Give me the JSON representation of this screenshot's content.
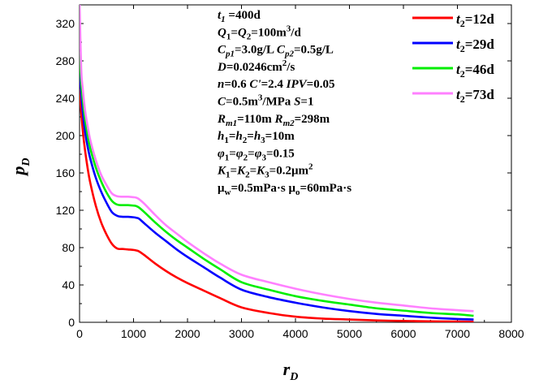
{
  "chart_data": {
    "type": "line",
    "xlabel": "r",
    "xlabel_sub": "D",
    "ylabel": "p",
    "ylabel_sub": "D",
    "xlim": [
      0,
      8000
    ],
    "ylim": [
      0,
      340
    ],
    "xticks": [
      0,
      1000,
      2000,
      3000,
      4000,
      5000,
      6000,
      7000,
      8000
    ],
    "yticks": [
      0,
      40,
      80,
      120,
      160,
      200,
      240,
      280,
      320
    ],
    "grid": false,
    "legend_position": "top-right",
    "series": [
      {
        "name": "t2=12d",
        "label_var": "t",
        "label_sub": "2",
        "label_val": "=12d",
        "color": "#ff0000",
        "x": [
          0,
          30,
          60,
          100,
          150,
          200,
          300,
          400,
          500,
          600,
          700,
          800,
          900,
          1000,
          1050,
          1100,
          1200,
          1400,
          1600,
          1800,
          2000,
          2300,
          2600,
          3000,
          3500,
          4000,
          4500,
          5000,
          5500,
          6000,
          6500,
          7000,
          7300
        ],
        "y": [
          250,
          225,
          205,
          185,
          165,
          149,
          125,
          107,
          94,
          84,
          79,
          78.5,
          78,
          77.5,
          77,
          76,
          72,
          63,
          55,
          48,
          42,
          34,
          26,
          16,
          10,
          6,
          4,
          3,
          2,
          1.5,
          1,
          0.8,
          0.5
        ]
      },
      {
        "name": "t2=29d",
        "label_var": "t",
        "label_sub": "2",
        "label_val": "=29d",
        "color": "#0000ff",
        "x": [
          0,
          30,
          60,
          100,
          150,
          200,
          300,
          400,
          500,
          600,
          700,
          800,
          900,
          1000,
          1050,
          1100,
          1200,
          1400,
          1600,
          1800,
          2000,
          2300,
          2600,
          3000,
          3500,
          4000,
          4500,
          5000,
          5500,
          6000,
          6500,
          7000,
          7300
        ],
        "y": [
          275,
          245,
          225,
          205,
          188,
          175,
          155,
          140,
          128,
          118,
          114,
          113,
          113,
          112.5,
          112,
          111,
          106,
          96,
          87,
          78,
          70,
          59,
          48,
          35,
          27,
          21,
          16,
          12,
          9,
          7,
          5,
          3.5,
          3
        ]
      },
      {
        "name": "t2=46d",
        "label_var": "t",
        "label_sub": "2",
        "label_val": "=46d",
        "color": "#00ee00",
        "x": [
          0,
          30,
          60,
          100,
          150,
          200,
          300,
          400,
          500,
          600,
          700,
          800,
          900,
          1000,
          1050,
          1100,
          1200,
          1400,
          1600,
          1800,
          2000,
          2300,
          2600,
          3000,
          3500,
          4000,
          4500,
          5000,
          5500,
          6000,
          6500,
          7000,
          7300
        ],
        "y": [
          290,
          258,
          238,
          218,
          200,
          186,
          166,
          151,
          139,
          130,
          126,
          125.5,
          125.5,
          125,
          124.5,
          123,
          118,
          107,
          97,
          88,
          80,
          68,
          57,
          43,
          35,
          28,
          23,
          19,
          15,
          12.5,
          10,
          8.5,
          7
        ]
      },
      {
        "name": "t2=73d",
        "label_var": "t",
        "label_sub": "2",
        "label_val": "=73d",
        "color": "#ff80ff",
        "x": [
          0,
          30,
          60,
          100,
          150,
          200,
          300,
          400,
          500,
          600,
          700,
          800,
          900,
          1000,
          1050,
          1100,
          1200,
          1400,
          1600,
          1800,
          2000,
          2300,
          2600,
          3000,
          3500,
          4000,
          4500,
          5000,
          5500,
          6000,
          6500,
          7000,
          7300
        ],
        "y": [
          340,
          272,
          250,
          228,
          210,
          195,
          174,
          158,
          147,
          138,
          135,
          134.5,
          134.5,
          134,
          133.5,
          132,
          127,
          115,
          104,
          95,
          86,
          74,
          63,
          51,
          43,
          36,
          30,
          25,
          21,
          18,
          15,
          13,
          12
        ]
      }
    ],
    "annotations": [
      {
        "id": "a1",
        "parts": [
          {
            "t": "t",
            "i": true
          },
          {
            "t": "1",
            "sub": true,
            "i": true
          },
          {
            "t": " =400d"
          }
        ]
      },
      {
        "id": "a2",
        "parts": [
          {
            "t": "Q",
            "i": true
          },
          {
            "t": "1",
            "sub": true
          },
          {
            "t": "="
          },
          {
            "t": "Q",
            "i": true
          },
          {
            "t": "2",
            "sub": true
          },
          {
            "t": "=100m"
          },
          {
            "t": "3",
            "sup": true
          },
          {
            "t": "/d"
          }
        ]
      },
      {
        "id": "a3",
        "parts": [
          {
            "t": "C",
            "i": true
          },
          {
            "t": "p1",
            "sub": true,
            "i": true
          },
          {
            "t": "=3.0g/L "
          },
          {
            "t": "C",
            "i": true
          },
          {
            "t": "p2",
            "sub": true,
            "i": true
          },
          {
            "t": "=0.5g/L"
          }
        ]
      },
      {
        "id": "a4",
        "parts": [
          {
            "t": "D",
            "i": true
          },
          {
            "t": "=0.0246cm"
          },
          {
            "t": "2",
            "sup": true
          },
          {
            "t": "/s"
          }
        ]
      },
      {
        "id": "a5",
        "parts": [
          {
            "t": "n",
            "i": true
          },
          {
            "t": "=0.6  "
          },
          {
            "t": "C'",
            "i": true
          },
          {
            "t": "=2.4  "
          },
          {
            "t": "IPV",
            "i": true
          },
          {
            "t": "=0.05"
          }
        ]
      },
      {
        "id": "a6",
        "parts": [
          {
            "t": "C",
            "i": true
          },
          {
            "t": "=0.5m"
          },
          {
            "t": "3",
            "sup": true
          },
          {
            "t": "/MPa    "
          },
          {
            "t": "S",
            "i": true
          },
          {
            "t": "=1"
          }
        ]
      },
      {
        "id": "a7",
        "parts": [
          {
            "t": "R",
            "i": true
          },
          {
            "t": "m1",
            "sub": true,
            "i": true
          },
          {
            "t": "=110m  "
          },
          {
            "t": "R",
            "i": true
          },
          {
            "t": "m2",
            "sub": true,
            "i": true
          },
          {
            "t": "=298m"
          }
        ]
      },
      {
        "id": "a8",
        "parts": [
          {
            "t": "h",
            "i": true
          },
          {
            "t": "1",
            "sub": true
          },
          {
            "t": "="
          },
          {
            "t": "h",
            "i": true
          },
          {
            "t": "2",
            "sub": true
          },
          {
            "t": "="
          },
          {
            "t": "h",
            "i": true
          },
          {
            "t": "3",
            "sub": true
          },
          {
            "t": "=10m"
          }
        ]
      },
      {
        "id": "a9",
        "parts": [
          {
            "t": "φ",
            "i": true
          },
          {
            "t": "1",
            "sub": true
          },
          {
            "t": "="
          },
          {
            "t": "φ",
            "i": true
          },
          {
            "t": "2",
            "sub": true
          },
          {
            "t": "="
          },
          {
            "t": "φ",
            "i": true
          },
          {
            "t": "3",
            "sub": true
          },
          {
            "t": "=0.15"
          }
        ]
      },
      {
        "id": "a10",
        "parts": [
          {
            "t": "K",
            "i": true
          },
          {
            "t": "1",
            "sub": true
          },
          {
            "t": "="
          },
          {
            "t": "K",
            "i": true
          },
          {
            "t": "2",
            "sub": true
          },
          {
            "t": "="
          },
          {
            "t": "K",
            "i": true
          },
          {
            "t": "3",
            "sub": true
          },
          {
            "t": "=0.2μm"
          },
          {
            "t": "2",
            "sup": true
          }
        ]
      },
      {
        "id": "a11",
        "parts": [
          {
            "t": "μ"
          },
          {
            "t": "w",
            "sub": true
          },
          {
            "t": "=0.5mPa·s  μ"
          },
          {
            "t": "o",
            "sub": true
          },
          {
            "t": "=60mPa·s"
          }
        ]
      }
    ]
  }
}
